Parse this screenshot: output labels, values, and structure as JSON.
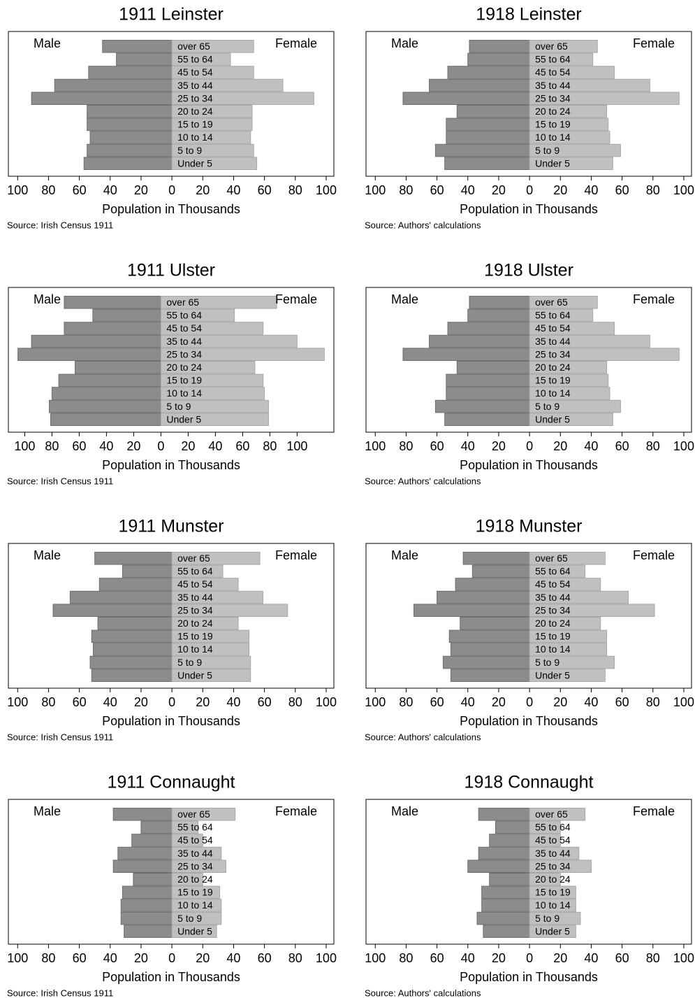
{
  "chart_data": [
    {
      "type": "pyramid",
      "title": "1911 Leinster",
      "xlabel": "Population in Thousands",
      "source": "Source: Irish Census 1911",
      "categories": [
        "Under 5",
        "5 to 9",
        "10 to 14",
        "15 to 19",
        "20 to 24",
        "25 to 34",
        "35 to 44",
        "45 to 54",
        "55 to 64",
        "over 65"
      ],
      "series": [
        {
          "name": "Male",
          "color": "#8c8c8c",
          "values": [
            -57,
            -55,
            -53,
            -55,
            -55,
            -91,
            -76,
            -54,
            -36,
            -45
          ]
        },
        {
          "name": "Female",
          "color": "#c0c0c0",
          "values": [
            55,
            53,
            51,
            52,
            52,
            92,
            72,
            53,
            38,
            53
          ]
        }
      ],
      "xlim": [
        -106,
        105
      ],
      "xticks": [
        {
          "value": -100,
          "label": "100"
        },
        {
          "value": -80,
          "label": "80"
        },
        {
          "value": -60,
          "label": "60"
        },
        {
          "value": -40,
          "label": "40"
        },
        {
          "value": -20,
          "label": "20"
        },
        0,
        20,
        40,
        60,
        80,
        100
      ]
    },
    {
      "type": "pyramid",
      "title": "1918 Leinster",
      "xlabel": "Population in Thousands",
      "source": "Source: Authors' calculations",
      "categories": [
        "Under 5",
        "5 to 9",
        "10 to 14",
        "15 to 19",
        "20 to 24",
        "25 to 34",
        "35 to 44",
        "45 to 54",
        "55 to 64",
        "over 65"
      ],
      "series": [
        {
          "name": "Male",
          "color": "#8c8c8c",
          "values": [
            -55,
            -61,
            -54,
            -54,
            -47,
            -82,
            -65,
            -53,
            -40,
            -39
          ]
        },
        {
          "name": "Female",
          "color": "#c0c0c0",
          "values": [
            54,
            59,
            52,
            51,
            50,
            97,
            78,
            55,
            41,
            44
          ]
        }
      ],
      "xlim": [
        -106,
        105
      ],
      "xticks": [
        {
          "value": -100,
          "label": "100"
        },
        {
          "value": -80,
          "label": "80"
        },
        {
          "value": -60,
          "label": "60"
        },
        {
          "value": -40,
          "label": "40"
        },
        {
          "value": -20,
          "label": "20"
        },
        0,
        20,
        40,
        60,
        80,
        100
      ]
    },
    {
      "type": "pyramid",
      "title": "1911 Ulster",
      "xlabel": "Population in Thousands",
      "source": "Source: Irish Census 1911",
      "categories": [
        "Under 5",
        "5 to 9",
        "10 to 14",
        "15 to 19",
        "20 to 24",
        "25 to 34",
        "35 to 44",
        "45 to 54",
        "55 to 64",
        "over 65"
      ],
      "series": [
        {
          "name": "Male",
          "color": "#8c8c8c",
          "values": [
            -81,
            -82,
            -80,
            -75,
            -63,
            -105,
            -95,
            -71,
            -50,
            -71
          ]
        },
        {
          "name": "Female",
          "color": "#c0c0c0",
          "values": [
            79,
            79,
            76,
            75,
            69,
            120,
            100,
            75,
            54,
            85
          ]
        }
      ],
      "xlim": [
        -112,
        127
      ],
      "xticks": [
        {
          "value": -100,
          "label": "100"
        },
        {
          "value": -80,
          "label": "80"
        },
        {
          "value": -60,
          "label": "60"
        },
        {
          "value": -40,
          "label": "40"
        },
        {
          "value": -20,
          "label": "20"
        },
        0,
        20,
        40,
        60,
        80,
        100
      ]
    },
    {
      "type": "pyramid",
      "title": "1918 Ulster",
      "xlabel": "Population in Thousands",
      "source": "Source: Authors' calculations",
      "categories": [
        "Under 5",
        "5 to 9",
        "10 to 14",
        "15 to 19",
        "20 to 24",
        "25 to 34",
        "35 to 44",
        "45 to 54",
        "55 to 64",
        "over 65"
      ],
      "series": [
        {
          "name": "Male",
          "color": "#8c8c8c",
          "values": [
            -55,
            -61,
            -54,
            -54,
            -47,
            -82,
            -65,
            -53,
            -40,
            -39
          ]
        },
        {
          "name": "Female",
          "color": "#c0c0c0",
          "values": [
            54,
            59,
            52,
            51,
            50,
            97,
            78,
            55,
            41,
            44
          ]
        }
      ],
      "xlim": [
        -106,
        105
      ],
      "xticks": [
        {
          "value": -100,
          "label": "100"
        },
        {
          "value": -80,
          "label": "80"
        },
        {
          "value": -60,
          "label": "60"
        },
        {
          "value": -40,
          "label": "40"
        },
        {
          "value": -20,
          "label": "20"
        },
        0,
        20,
        40,
        60,
        80,
        100
      ]
    },
    {
      "type": "pyramid",
      "title": "1911 Munster",
      "xlabel": "Population in Thousands",
      "source": "Source: Irish Census 1911",
      "categories": [
        "Under 5",
        "5 to 9",
        "10 to 14",
        "15 to 19",
        "20 to 24",
        "25 to 34",
        "35 to 44",
        "45 to 54",
        "55 to 64",
        "over 65"
      ],
      "series": [
        {
          "name": "Male",
          "color": "#8c8c8c",
          "values": [
            -52,
            -53,
            -51,
            -52,
            -48,
            -77,
            -66,
            -47,
            -32,
            -50
          ]
        },
        {
          "name": "Female",
          "color": "#c0c0c0",
          "values": [
            51,
            51,
            50,
            50,
            43,
            75,
            59,
            43,
            33,
            57
          ]
        }
      ],
      "xlim": [
        -106,
        105
      ],
      "xticks": [
        {
          "value": -100,
          "label": "100"
        },
        {
          "value": -80,
          "label": "80"
        },
        {
          "value": -60,
          "label": "60"
        },
        {
          "value": -40,
          "label": "40"
        },
        {
          "value": -20,
          "label": "20"
        },
        0,
        20,
        40,
        60,
        80,
        100
      ]
    },
    {
      "type": "pyramid",
      "title": "1918 Munster",
      "xlabel": "Population in Thousands",
      "source": "Source: Authors' calculations",
      "categories": [
        "Under 5",
        "5 to 9",
        "10 to 14",
        "15 to 19",
        "20 to 24",
        "25 to 34",
        "35 to 44",
        "45 to 54",
        "55 to 64",
        "over 65"
      ],
      "series": [
        {
          "name": "Male",
          "color": "#8c8c8c",
          "values": [
            -51,
            -56,
            -51,
            -52,
            -45,
            -75,
            -60,
            -48,
            -37,
            -43
          ]
        },
        {
          "name": "Female",
          "color": "#c0c0c0",
          "values": [
            49,
            55,
            50,
            50,
            46,
            81,
            64,
            46,
            36,
            49
          ]
        }
      ],
      "xlim": [
        -106,
        105
      ],
      "xticks": [
        {
          "value": -100,
          "label": "100"
        },
        {
          "value": -80,
          "label": "80"
        },
        {
          "value": -60,
          "label": "60"
        },
        {
          "value": -40,
          "label": "40"
        },
        {
          "value": -20,
          "label": "20"
        },
        0,
        20,
        40,
        60,
        80,
        100
      ]
    },
    {
      "type": "pyramid",
      "title": "1911 Connaught",
      "xlabel": "Population in Thousands",
      "source": "Source: Irish Census 1911",
      "categories": [
        "Under 5",
        "5 to 9",
        "10 to 14",
        "15 to 19",
        "20 to 24",
        "25 to 34",
        "35 to 44",
        "45 to 54",
        "55 to 64",
        "over 65"
      ],
      "series": [
        {
          "name": "Male",
          "color": "#8c8c8c",
          "values": [
            -31,
            -33,
            -33,
            -32,
            -25,
            -38,
            -35,
            -26,
            -20,
            -38
          ]
        },
        {
          "name": "Female",
          "color": "#c0c0c0",
          "values": [
            29,
            32,
            32,
            31,
            20,
            35,
            32,
            20,
            17,
            41
          ]
        }
      ],
      "xlim": [
        -106,
        105
      ],
      "xticks": [
        {
          "value": -100,
          "label": "100"
        },
        {
          "value": -80,
          "label": "80"
        },
        {
          "value": -60,
          "label": "60"
        },
        {
          "value": -40,
          "label": "40"
        },
        {
          "value": -20,
          "label": "20"
        },
        0,
        20,
        40,
        60,
        80,
        100
      ]
    },
    {
      "type": "pyramid",
      "title": "1918 Connaught",
      "xlabel": "Population in Thousands",
      "source": "Source: Authors' calculations",
      "categories": [
        "Under 5",
        "5 to 9",
        "10 to 14",
        "15 to 19",
        "20 to 24",
        "25 to 34",
        "35 to 44",
        "45 to 54",
        "55 to 64",
        "over 65"
      ],
      "series": [
        {
          "name": "Male",
          "color": "#8c8c8c",
          "values": [
            -30,
            -34,
            -31,
            -31,
            -26,
            -40,
            -33,
            -26,
            -22,
            -33
          ]
        },
        {
          "name": "Female",
          "color": "#c0c0c0",
          "values": [
            30,
            33,
            30,
            30,
            20,
            40,
            32,
            20,
            20,
            36
          ]
        }
      ],
      "xlim": [
        -106,
        105
      ],
      "xticks": [
        {
          "value": -100,
          "label": "100"
        },
        {
          "value": -80,
          "label": "80"
        },
        {
          "value": -60,
          "label": "60"
        },
        {
          "value": -40,
          "label": "40"
        },
        {
          "value": -20,
          "label": "20"
        },
        0,
        20,
        40,
        60,
        80,
        100
      ]
    }
  ]
}
